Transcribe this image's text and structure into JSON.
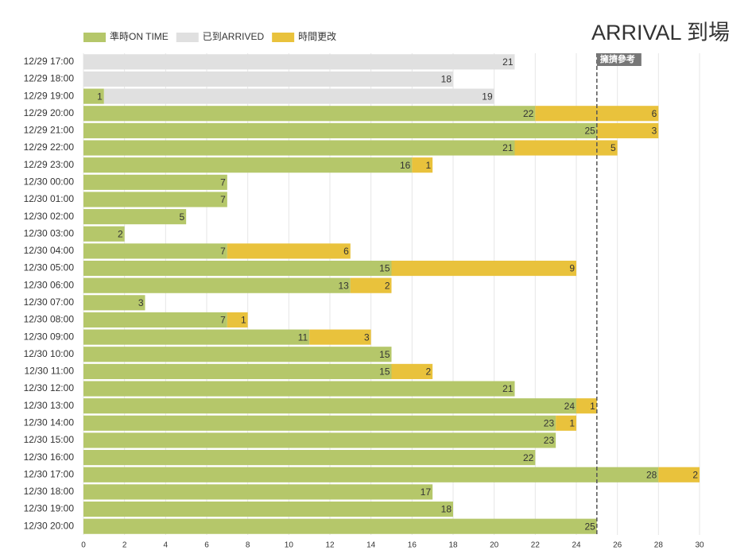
{
  "chart_data": {
    "type": "stacked_hbar",
    "title": "ARRIVAL 到場",
    "categories": [
      "12/29 17:00",
      "12/29 18:00",
      "12/29 19:00",
      "12/29 20:00",
      "12/29 21:00",
      "12/29 22:00",
      "12/29 23:00",
      "12/30 00:00",
      "12/30 01:00",
      "12/30 02:00",
      "12/30 03:00",
      "12/30 04:00",
      "12/30 05:00",
      "12/30 06:00",
      "12/30 07:00",
      "12/30 08:00",
      "12/30 09:00",
      "12/30 10:00",
      "12/30 11:00",
      "12/30 12:00",
      "12/30 13:00",
      "12/30 14:00",
      "12/30 15:00",
      "12/30 16:00",
      "12/30 17:00",
      "12/30 18:00",
      "12/30 19:00",
      "12/30 20:00"
    ],
    "series": [
      {
        "name": "準時ON TIME",
        "color": "#b5c76a",
        "values": [
          null,
          null,
          1,
          22,
          25,
          21,
          16,
          7,
          7,
          5,
          2,
          7,
          15,
          13,
          3,
          7,
          11,
          15,
          15,
          21,
          24,
          23,
          23,
          22,
          28,
          17,
          18,
          25
        ]
      },
      {
        "name": "已到ARRIVED",
        "color": "#e0e0e0",
        "values": [
          21,
          18,
          19,
          null,
          null,
          null,
          null,
          null,
          null,
          null,
          null,
          null,
          null,
          null,
          null,
          null,
          null,
          null,
          null,
          null,
          null,
          null,
          null,
          null,
          null,
          null,
          null,
          null
        ]
      },
      {
        "name": "時間更改",
        "color": "#e9c23c",
        "values": [
          null,
          null,
          null,
          6,
          3,
          5,
          1,
          null,
          null,
          null,
          null,
          6,
          9,
          2,
          null,
          1,
          3,
          null,
          2,
          null,
          1,
          1,
          null,
          null,
          2,
          null,
          null,
          null
        ]
      }
    ],
    "xlim": [
      0,
      30
    ],
    "xticks": [
      0,
      2,
      4,
      6,
      8,
      10,
      12,
      14,
      16,
      18,
      20,
      22,
      24,
      26,
      28,
      30
    ],
    "grid": true,
    "reference_line": {
      "value": 25,
      "label": "擁擠參考"
    }
  }
}
